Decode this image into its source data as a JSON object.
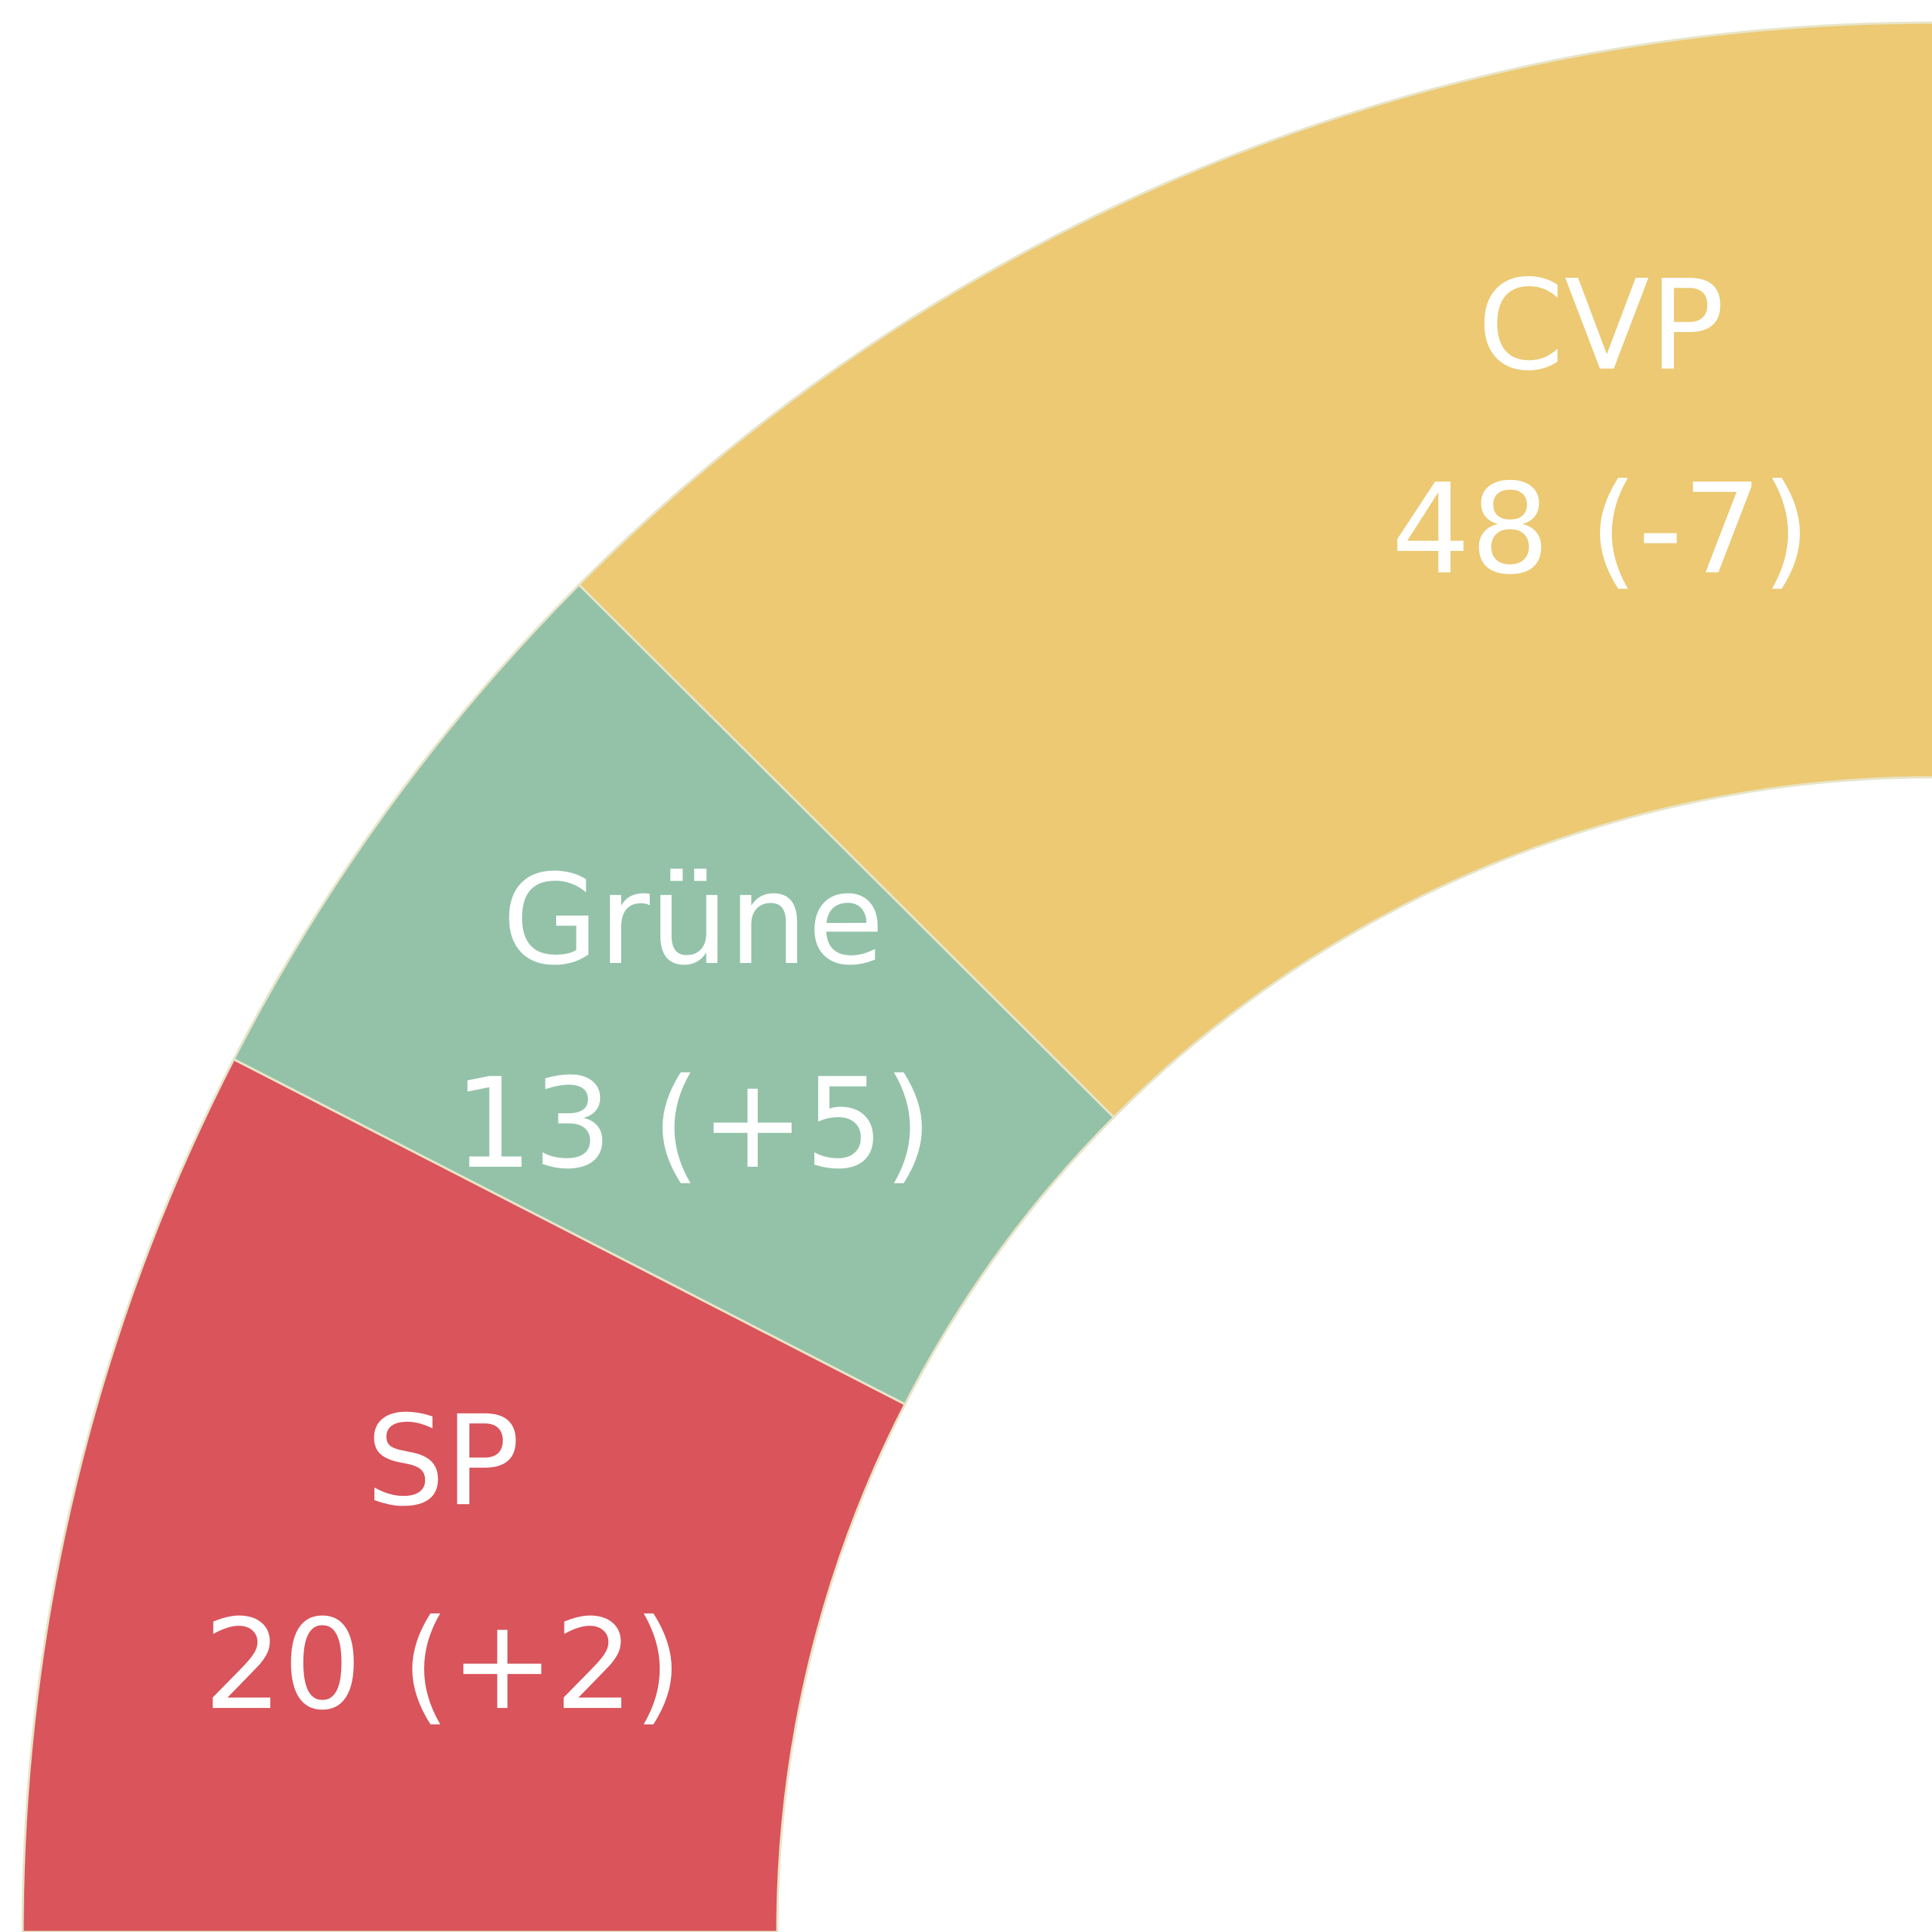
{
  "chart_data": {
    "type": "half-donut",
    "categories": [
      "SP",
      "Grüne",
      "CVP"
    ],
    "values": [
      20,
      13,
      48
    ],
    "value_labels": [
      "20 (+2)",
      "13 (+5)",
      "48 (-7)"
    ],
    "colors": [
      "#d9545b",
      "#93c2a8",
      "#ecc972"
    ]
  }
}
